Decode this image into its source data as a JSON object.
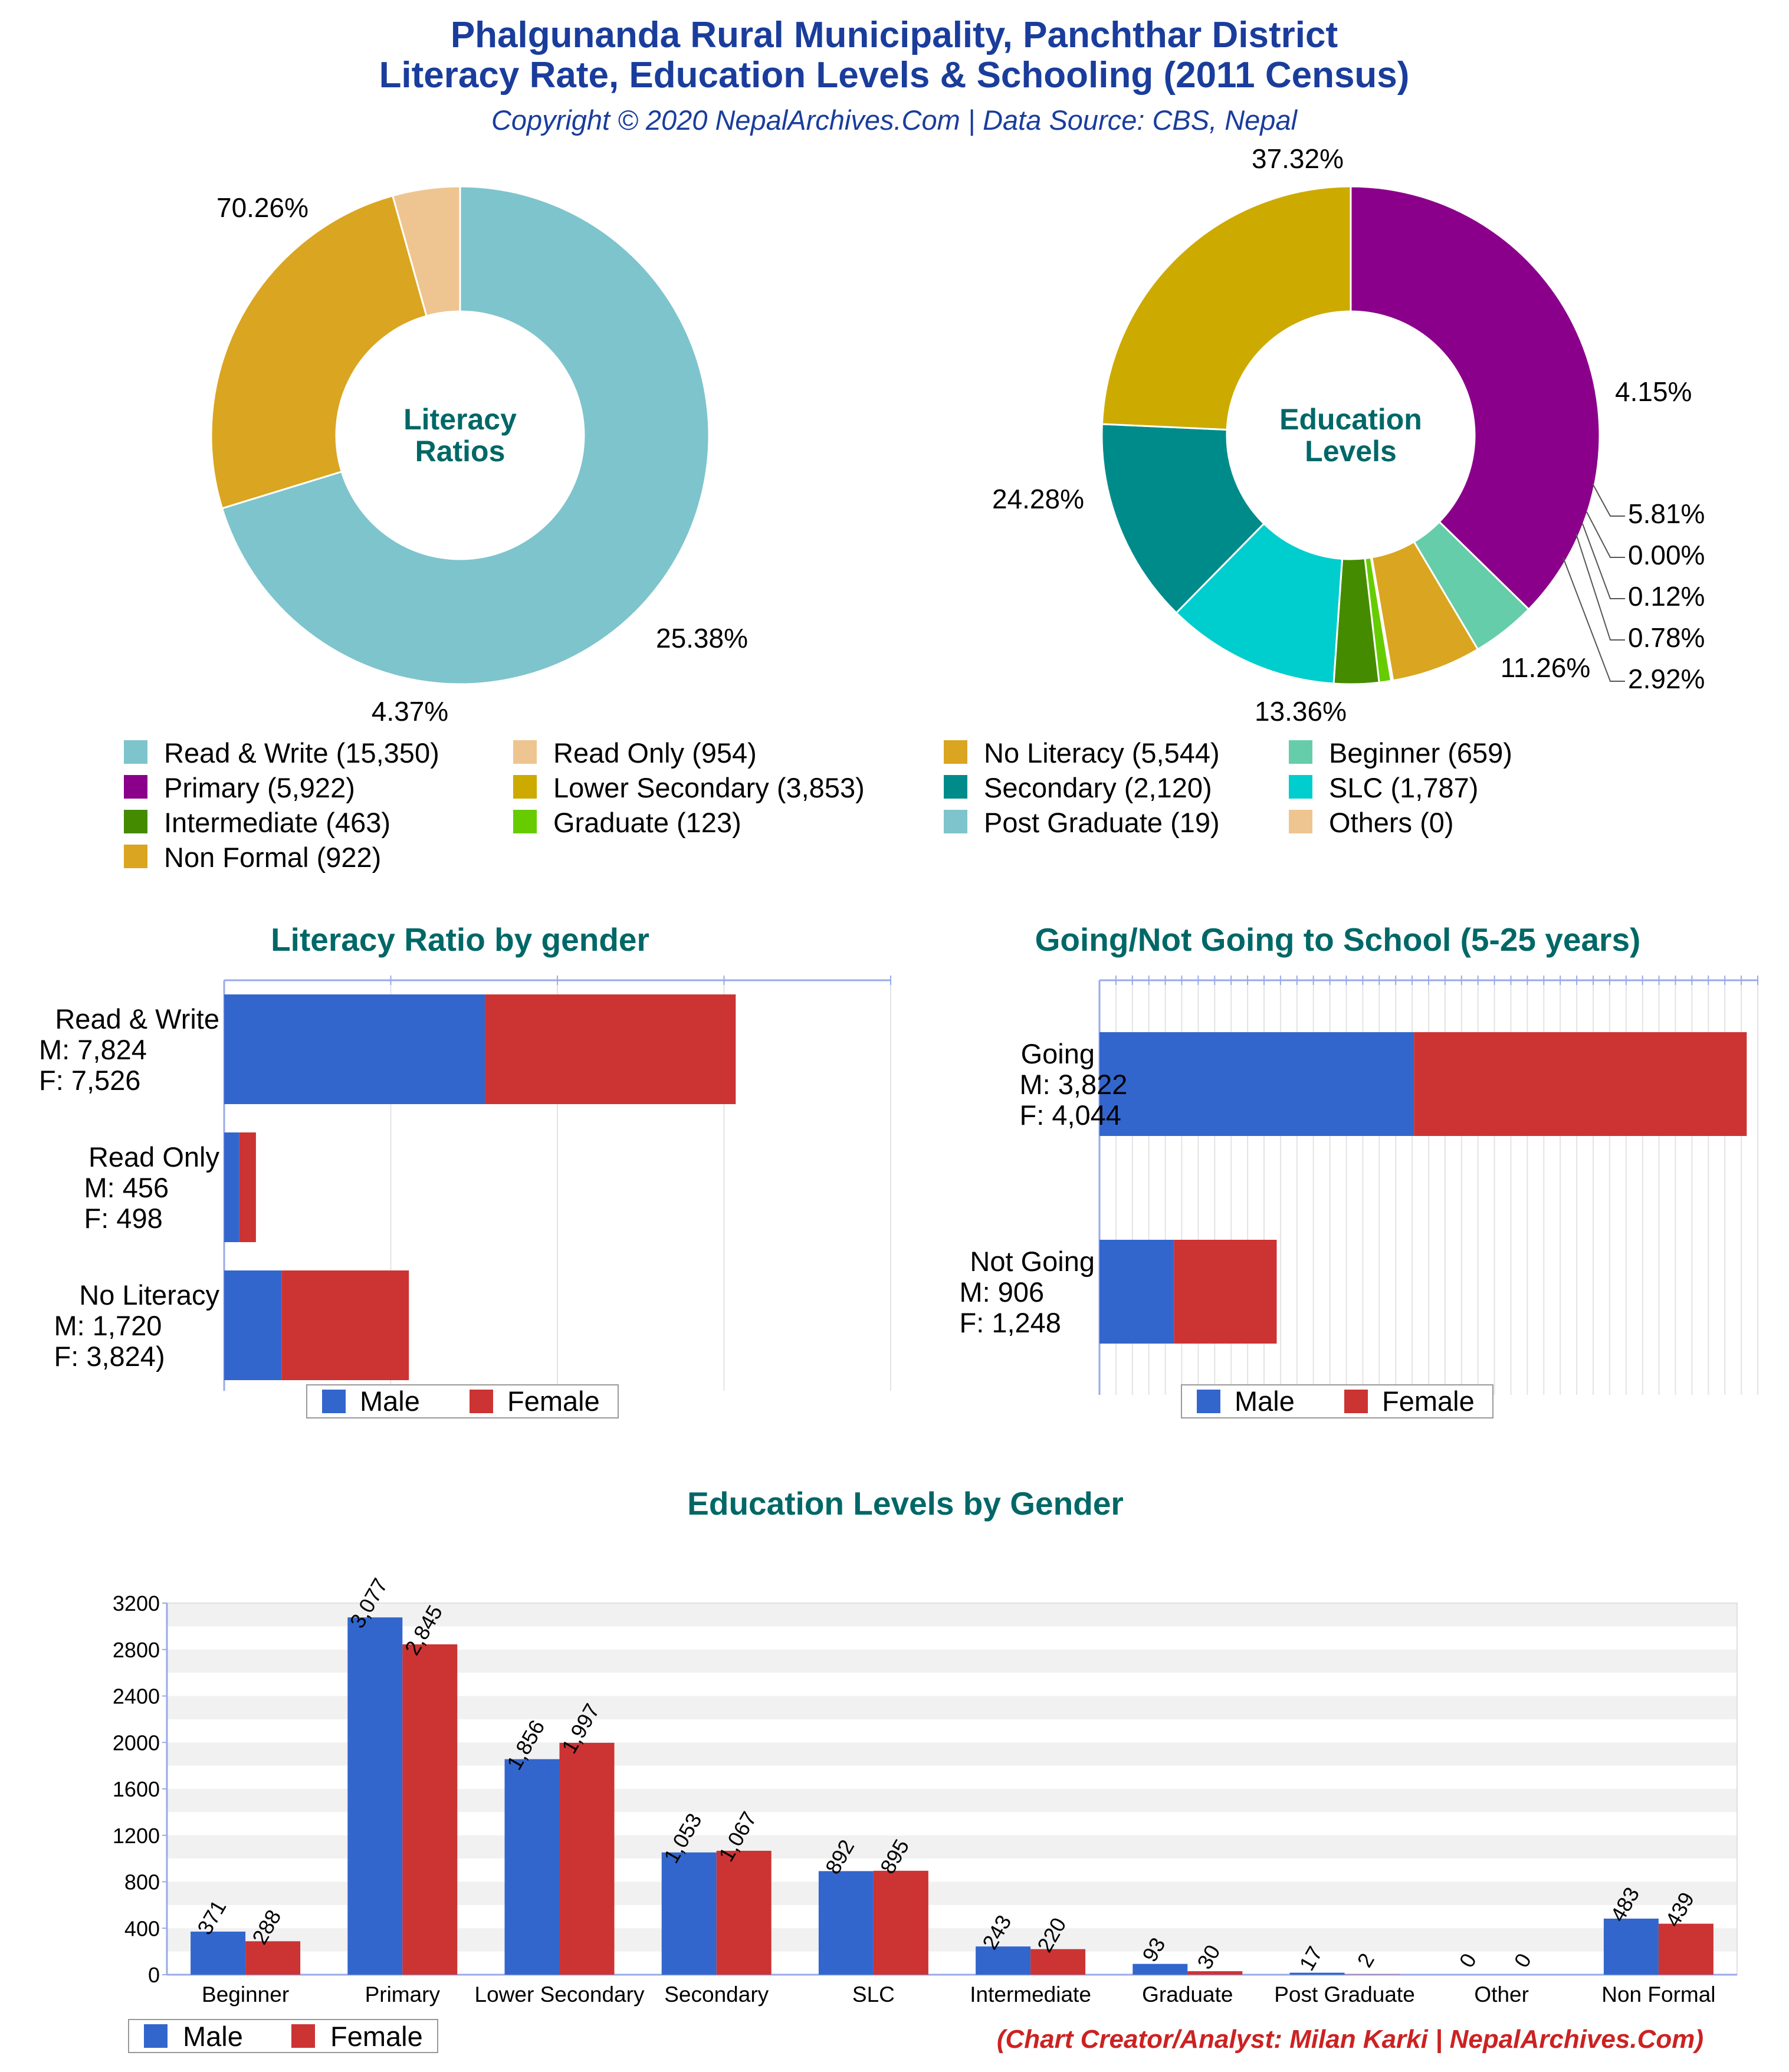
{
  "header": {
    "title_line1": "Phalgunanda Rural Municipality, Panchthar District",
    "title_line2": "Literacy Rate, Education Levels & Schooling (2011 Census)",
    "subtitle": "Copyright © 2020 NepalArchives.Com | Data Source: CBS, Nepal"
  },
  "credit": "(Chart Creator/Analyst: Milan Karki | NepalArchives.Com)",
  "legend_male": "Male",
  "legend_female": "Female",
  "colors": {
    "male": "#3366cc",
    "female": "#cc3333",
    "read_write": "#7ec4cc",
    "read_only": "#eec591",
    "no_literacy": "#daa520",
    "primary": "#8b008b",
    "beginner": "#66cdaa",
    "non_formal": "#daa520",
    "others": "#eec591",
    "post_graduate": "#7ec4cc",
    "graduate": "#66cc00",
    "intermediate": "#458b00",
    "slc": "#00cdcd",
    "secondary": "#008b8b",
    "lower_secondary": "#cdaa00"
  },
  "pie_legend": [
    {
      "label": "Read & Write (15,350)",
      "color": "#7ec4cc"
    },
    {
      "label": "Read Only (954)",
      "color": "#eec591"
    },
    {
      "label": "No Literacy (5,544)",
      "color": "#daa520"
    },
    {
      "label": "Beginner (659)",
      "color": "#66cdaa"
    },
    {
      "label": "Primary (5,922)",
      "color": "#8b008b"
    },
    {
      "label": "Lower Secondary (3,853)",
      "color": "#cdaa00"
    },
    {
      "label": "Secondary (2,120)",
      "color": "#008b8b"
    },
    {
      "label": "SLC (1,787)",
      "color": "#00cdcd"
    },
    {
      "label": "Intermediate (463)",
      "color": "#458b00"
    },
    {
      "label": "Graduate (123)",
      "color": "#66cc00"
    },
    {
      "label": "Post Graduate (19)",
      "color": "#7ec4cc"
    },
    {
      "label": "Others (0)",
      "color": "#eec591"
    },
    {
      "label": "Non Formal (922)",
      "color": "#daa520"
    }
  ],
  "chart_data": [
    {
      "type": "pie",
      "center_label": [
        "Literacy",
        "Ratios"
      ],
      "slices": [
        {
          "label": "Read & Write",
          "value": 15350,
          "pct": "70.26%",
          "color": "#7ec4cc"
        },
        {
          "label": "No Literacy",
          "value": 5544,
          "pct": "25.38%",
          "color": "#daa520"
        },
        {
          "label": "Read Only",
          "value": 954,
          "pct": "4.37%",
          "color": "#eec591"
        }
      ]
    },
    {
      "type": "pie",
      "center_label": [
        "Education",
        "Levels"
      ],
      "slices": [
        {
          "label": "Primary",
          "value": 5922,
          "pct": "37.32%",
          "color": "#8b008b"
        },
        {
          "label": "Beginner",
          "value": 659,
          "pct": "4.15%",
          "color": "#66cdaa"
        },
        {
          "label": "Non Formal",
          "value": 922,
          "pct": "5.81%",
          "color": "#daa520"
        },
        {
          "label": "Others",
          "value": 0,
          "pct": "0.00%",
          "color": "#eec591"
        },
        {
          "label": "Post Graduate",
          "value": 19,
          "pct": "0.12%",
          "color": "#7ec4cc"
        },
        {
          "label": "Graduate",
          "value": 123,
          "pct": "0.78%",
          "color": "#66cc00"
        },
        {
          "label": "Intermediate",
          "value": 463,
          "pct": "2.92%",
          "color": "#458b00"
        },
        {
          "label": "SLC",
          "value": 1787,
          "pct": "11.26%",
          "color": "#00cdcd"
        },
        {
          "label": "Secondary",
          "value": 2120,
          "pct": "13.36%",
          "color": "#008b8b"
        },
        {
          "label": "Lower Secondary",
          "value": 3853,
          "pct": "24.28%",
          "color": "#cdaa00"
        }
      ]
    },
    {
      "type": "bar",
      "orientation": "horizontal",
      "stacked": true,
      "title": "Literacy Ratio by gender",
      "categories": [
        {
          "name": "Read & Write",
          "m_text": "M: 7,824",
          "f_text": "F: 7,526"
        },
        {
          "name": "Read Only",
          "m_text": "M: 456",
          "f_text": "F: 498"
        },
        {
          "name": "No Literacy",
          "m_text": "M: 1,720",
          "f_text": "F: 3,824)"
        }
      ],
      "series": [
        {
          "name": "Male",
          "values": [
            7824,
            456,
            1720
          ]
        },
        {
          "name": "Female",
          "values": [
            7526,
            498,
            3824
          ]
        }
      ],
      "xlim": [
        0,
        20000
      ],
      "legend": "bottom"
    },
    {
      "type": "bar",
      "orientation": "horizontal",
      "stacked": true,
      "title": "Going/Not Going to School (5-25 years)",
      "categories": [
        {
          "name": "Going",
          "m_text": "M: 3,822",
          "f_text": "F: 4,044"
        },
        {
          "name": "Not Going",
          "m_text": "M: 906",
          "f_text": "F: 1,248"
        }
      ],
      "series": [
        {
          "name": "Male",
          "values": [
            3822,
            906
          ]
        },
        {
          "name": "Female",
          "values": [
            4044,
            1248
          ]
        }
      ],
      "xlim": [
        0,
        8000
      ],
      "legend": "bottom"
    },
    {
      "type": "bar",
      "title": "Education Levels by Gender",
      "categories": [
        "Beginner",
        "Primary",
        "Lower Secondary",
        "Secondary",
        "SLC",
        "Intermediate",
        "Graduate",
        "Post Graduate",
        "Other",
        "Non Formal"
      ],
      "series": [
        {
          "name": "Male",
          "values": [
            371,
            3077,
            1856,
            1053,
            892,
            243,
            93,
            17,
            0,
            483
          ]
        },
        {
          "name": "Female",
          "values": [
            288,
            2845,
            1997,
            1067,
            895,
            220,
            30,
            2,
            0,
            439
          ]
        }
      ],
      "value_labels": {
        "male": [
          "371",
          "3,077",
          "1,856",
          "1,053",
          "892",
          "243",
          "93",
          "17",
          "0",
          "483"
        ],
        "female": [
          "288",
          "2,845",
          "1,997",
          "1,067",
          "895",
          "220",
          "30",
          "2",
          "0",
          "439"
        ]
      },
      "yticks": [
        "0",
        "400",
        "800",
        "1200",
        "1600",
        "2000",
        "2400",
        "2800",
        "3200"
      ],
      "ylim": [
        0,
        3200
      ],
      "legend": "bottom-left"
    }
  ]
}
